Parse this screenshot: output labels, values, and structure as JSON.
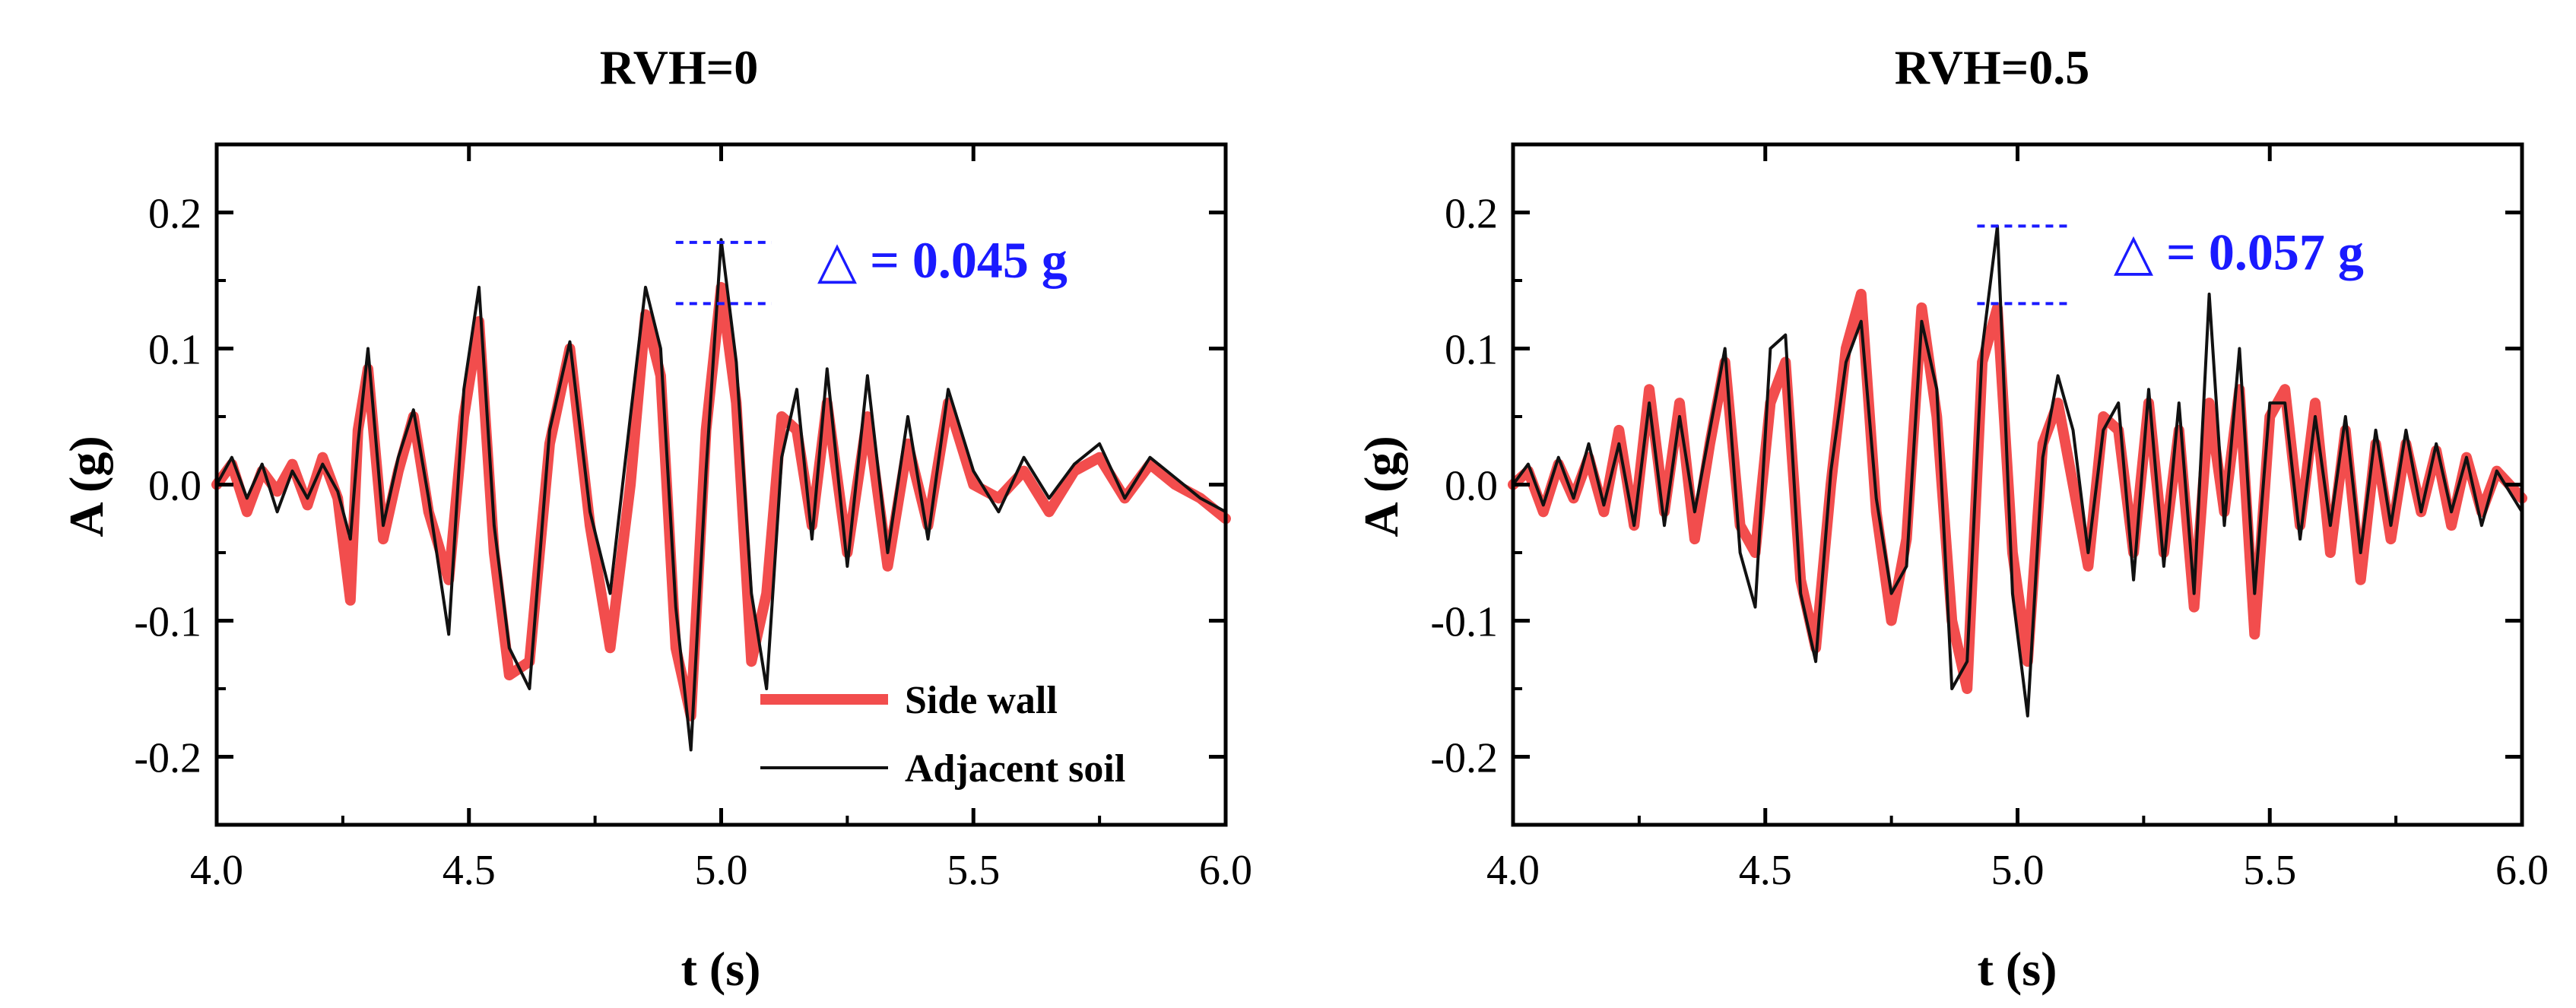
{
  "chart_data": [
    {
      "type": "line",
      "title": "RVH=0",
      "xlabel": "t (s)",
      "ylabel": "A (g)",
      "xlim": [
        4.0,
        6.0
      ],
      "ylim": [
        -0.25,
        0.25
      ],
      "xticks": [
        "4.0",
        "4.5",
        "5.0",
        "5.5",
        "6.0"
      ],
      "yticks": [
        "-0.2",
        "-0.1",
        "0.0",
        "0.1",
        "0.2"
      ],
      "legend": [
        "Side wall",
        "Adjacent soil"
      ],
      "legend_position": "bottom-right",
      "annotation": {
        "text": "△ = 0.045 g",
        "upper": 0.178,
        "lower": 0.133,
        "x_from": 4.91,
        "x_to": 5.1,
        "color": "#1a1aff"
      },
      "series": [
        {
          "name": "Side wall",
          "color": "#f24d4d",
          "x": [
            4.0,
            4.03,
            4.06,
            4.09,
            4.12,
            4.15,
            4.18,
            4.21,
            4.24,
            4.265,
            4.28,
            4.3,
            4.33,
            4.36,
            4.39,
            4.42,
            4.46,
            4.49,
            4.52,
            4.55,
            4.58,
            4.62,
            4.66,
            4.7,
            4.74,
            4.78,
            4.82,
            4.85,
            4.88,
            4.91,
            4.94,
            4.97,
            5.0,
            5.03,
            5.06,
            5.09,
            5.12,
            5.15,
            5.18,
            5.21,
            5.25,
            5.29,
            5.33,
            5.37,
            5.41,
            5.45,
            5.5,
            5.55,
            5.6,
            5.65,
            5.7,
            5.75,
            5.8,
            5.85,
            5.9,
            5.95,
            6.0
          ],
          "values": [
            0.0,
            0.015,
            -0.02,
            0.01,
            -0.005,
            0.015,
            -0.015,
            0.02,
            -0.01,
            -0.085,
            0.04,
            0.085,
            -0.04,
            0.01,
            0.05,
            -0.02,
            -0.07,
            0.05,
            0.12,
            -0.05,
            -0.14,
            -0.13,
            0.03,
            0.1,
            -0.03,
            -0.12,
            0.0,
            0.125,
            0.08,
            -0.12,
            -0.17,
            0.04,
            0.145,
            0.06,
            -0.13,
            -0.08,
            0.05,
            0.04,
            -0.03,
            0.06,
            -0.05,
            0.05,
            -0.06,
            0.03,
            -0.03,
            0.06,
            0.0,
            -0.01,
            0.01,
            -0.02,
            0.01,
            0.02,
            -0.01,
            0.015,
            0.0,
            -0.01,
            -0.025
          ]
        },
        {
          "name": "Adjacent soil",
          "color": "#111111",
          "x": [
            4.0,
            4.03,
            4.06,
            4.09,
            4.12,
            4.15,
            4.18,
            4.21,
            4.24,
            4.265,
            4.28,
            4.3,
            4.33,
            4.36,
            4.39,
            4.42,
            4.46,
            4.49,
            4.52,
            4.55,
            4.58,
            4.62,
            4.66,
            4.7,
            4.74,
            4.78,
            4.82,
            4.85,
            4.88,
            4.91,
            4.94,
            4.97,
            5.0,
            5.03,
            5.06,
            5.09,
            5.12,
            5.15,
            5.18,
            5.21,
            5.25,
            5.29,
            5.33,
            5.37,
            5.41,
            5.45,
            5.5,
            5.55,
            5.6,
            5.65,
            5.7,
            5.75,
            5.8,
            5.85,
            5.9,
            5.95,
            6.0
          ],
          "values": [
            0.0,
            0.02,
            -0.01,
            0.015,
            -0.02,
            0.01,
            -0.01,
            0.015,
            -0.005,
            -0.04,
            0.03,
            0.1,
            -0.03,
            0.02,
            0.055,
            -0.01,
            -0.11,
            0.07,
            0.145,
            -0.03,
            -0.12,
            -0.15,
            0.04,
            0.105,
            -0.02,
            -0.08,
            0.05,
            0.145,
            0.1,
            -0.09,
            -0.195,
            0.01,
            0.18,
            0.09,
            -0.08,
            -0.15,
            0.02,
            0.07,
            -0.04,
            0.085,
            -0.06,
            0.08,
            -0.05,
            0.05,
            -0.04,
            0.07,
            0.01,
            -0.02,
            0.02,
            -0.01,
            0.015,
            0.03,
            -0.01,
            0.02,
            0.005,
            -0.01,
            -0.02
          ]
        }
      ]
    },
    {
      "type": "line",
      "title": "RVH=0.5",
      "xlabel": "t (s)",
      "ylabel": "A (g)",
      "xlim": [
        4.0,
        6.0
      ],
      "ylim": [
        -0.25,
        0.25
      ],
      "xticks": [
        "4.0",
        "4.5",
        "5.0",
        "5.5",
        "6.0"
      ],
      "yticks": [
        "-0.2",
        "-0.1",
        "0.0",
        "0.1",
        "0.2"
      ],
      "annotation": {
        "text": "△ = 0.057 g",
        "upper": 0.19,
        "lower": 0.133,
        "x_from": 4.92,
        "x_to": 5.1,
        "color": "#1a1aff"
      },
      "series": [
        {
          "name": "Side wall",
          "color": "#f24d4d",
          "x": [
            4.0,
            4.03,
            4.06,
            4.09,
            4.12,
            4.15,
            4.18,
            4.21,
            4.24,
            4.27,
            4.3,
            4.33,
            4.36,
            4.39,
            4.42,
            4.45,
            4.48,
            4.51,
            4.54,
            4.57,
            4.6,
            4.63,
            4.66,
            4.69,
            4.72,
            4.75,
            4.78,
            4.81,
            4.84,
            4.87,
            4.9,
            4.93,
            4.96,
            4.99,
            5.02,
            5.05,
            5.08,
            5.11,
            5.14,
            5.17,
            5.2,
            5.23,
            5.26,
            5.29,
            5.32,
            5.35,
            5.38,
            5.41,
            5.44,
            5.47,
            5.5,
            5.53,
            5.56,
            5.59,
            5.62,
            5.65,
            5.68,
            5.71,
            5.74,
            5.77,
            5.8,
            5.83,
            5.86,
            5.89,
            5.92,
            5.95,
            6.0
          ],
          "values": [
            0.0,
            0.01,
            -0.02,
            0.015,
            -0.01,
            0.02,
            -0.02,
            0.04,
            -0.03,
            0.07,
            -0.02,
            0.06,
            -0.04,
            0.03,
            0.09,
            -0.03,
            -0.05,
            0.06,
            0.09,
            -0.07,
            -0.12,
            0.0,
            0.1,
            0.14,
            -0.02,
            -0.1,
            -0.04,
            0.13,
            0.05,
            -0.1,
            -0.15,
            0.09,
            0.13,
            -0.05,
            -0.13,
            0.03,
            0.06,
            0.0,
            -0.06,
            0.05,
            0.04,
            -0.05,
            0.06,
            -0.05,
            0.04,
            -0.09,
            0.06,
            -0.02,
            0.07,
            -0.11,
            0.05,
            0.07,
            -0.03,
            0.06,
            -0.05,
            0.04,
            -0.07,
            0.03,
            -0.04,
            0.03,
            -0.02,
            0.025,
            -0.03,
            0.02,
            -0.02,
            0.01,
            -0.01
          ]
        },
        {
          "name": "Adjacent soil",
          "color": "#111111",
          "x": [
            4.0,
            4.03,
            4.06,
            4.09,
            4.12,
            4.15,
            4.18,
            4.21,
            4.24,
            4.27,
            4.3,
            4.33,
            4.36,
            4.39,
            4.42,
            4.45,
            4.48,
            4.51,
            4.54,
            4.57,
            4.6,
            4.63,
            4.66,
            4.69,
            4.72,
            4.75,
            4.78,
            4.81,
            4.84,
            4.87,
            4.9,
            4.93,
            4.96,
            4.99,
            5.02,
            5.05,
            5.08,
            5.11,
            5.14,
            5.17,
            5.2,
            5.23,
            5.26,
            5.29,
            5.32,
            5.35,
            5.38,
            5.41,
            5.44,
            5.47,
            5.5,
            5.53,
            5.56,
            5.59,
            5.62,
            5.65,
            5.68,
            5.71,
            5.74,
            5.77,
            5.8,
            5.83,
            5.86,
            5.89,
            5.92,
            5.95,
            6.0
          ],
          "values": [
            0.0,
            0.015,
            -0.015,
            0.02,
            -0.01,
            0.03,
            -0.015,
            0.03,
            -0.03,
            0.06,
            -0.03,
            0.05,
            -0.02,
            0.04,
            0.1,
            -0.05,
            -0.09,
            0.1,
            0.11,
            -0.08,
            -0.13,
            0.01,
            0.09,
            0.12,
            -0.01,
            -0.08,
            -0.06,
            0.12,
            0.07,
            -0.15,
            -0.13,
            0.1,
            0.19,
            -0.08,
            -0.17,
            0.02,
            0.08,
            0.04,
            -0.05,
            0.04,
            0.06,
            -0.07,
            0.07,
            -0.06,
            0.06,
            -0.08,
            0.14,
            -0.03,
            0.1,
            -0.08,
            0.06,
            0.06,
            -0.04,
            0.05,
            -0.03,
            0.05,
            -0.05,
            0.04,
            -0.03,
            0.04,
            -0.02,
            0.03,
            -0.02,
            0.02,
            -0.03,
            0.01,
            -0.02
          ]
        }
      ]
    }
  ]
}
